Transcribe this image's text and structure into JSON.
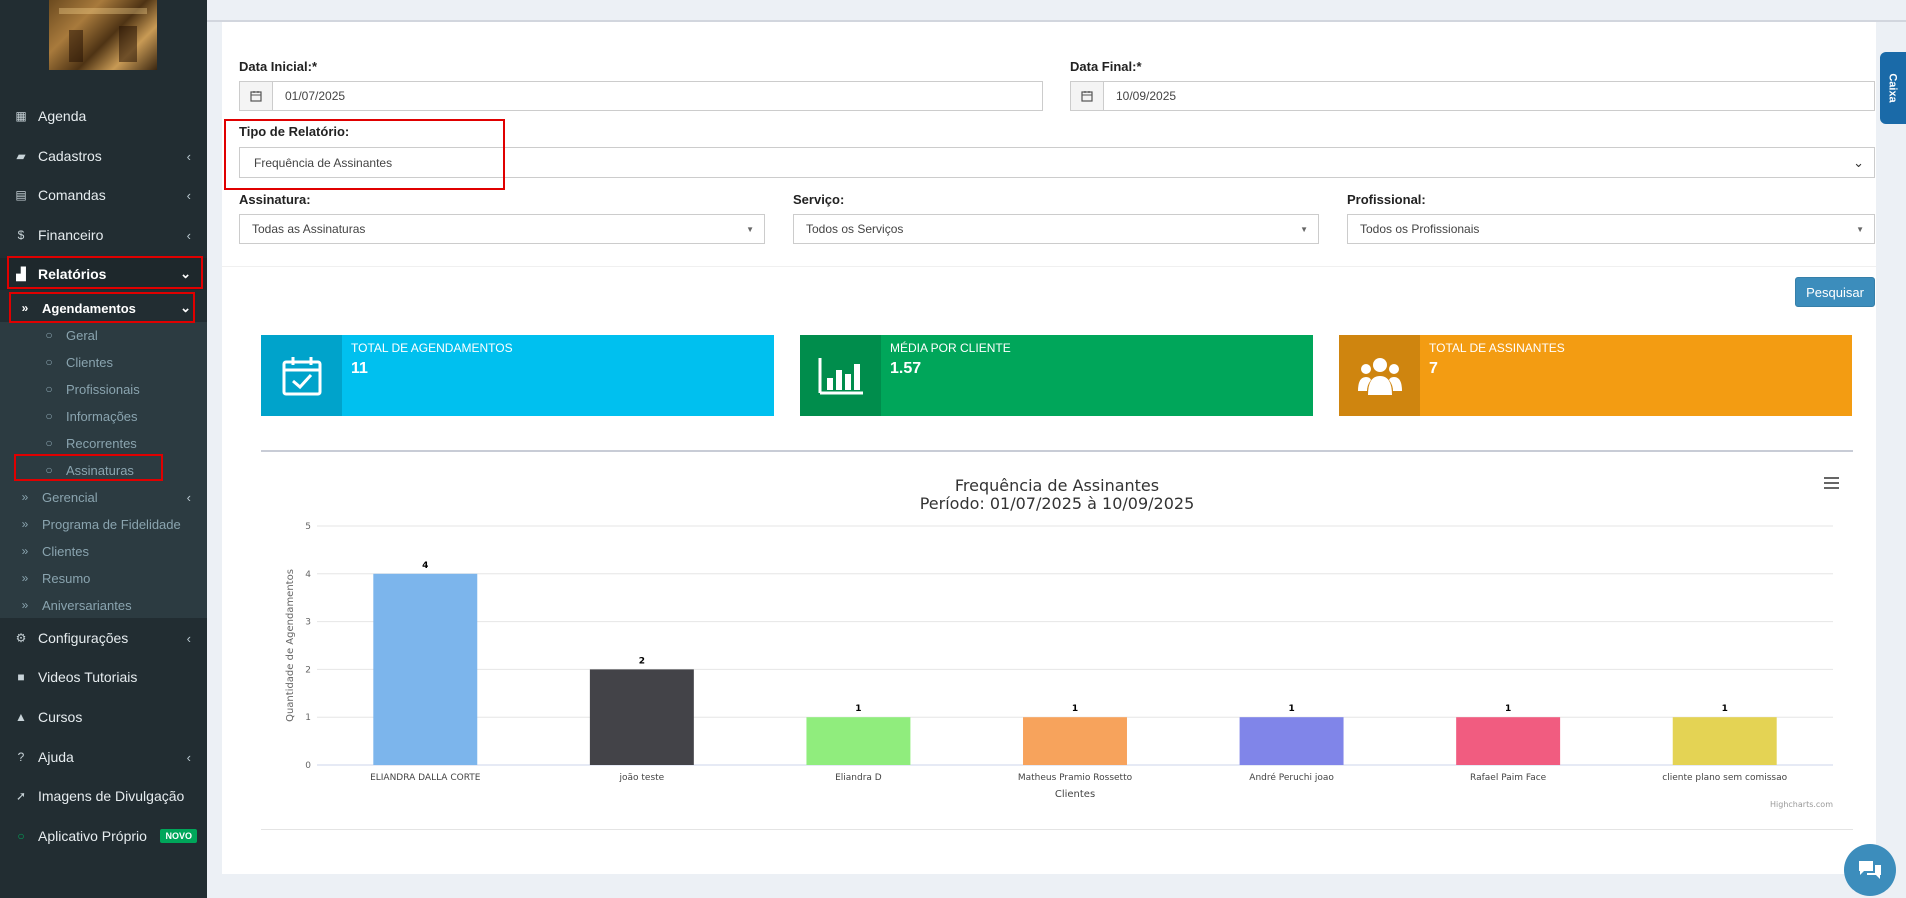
{
  "sidebar": {
    "items": [
      {
        "label": "Agenda",
        "icon": "calendar-icon"
      },
      {
        "label": "Cadastros",
        "icon": "book-icon"
      },
      {
        "label": "Comandas",
        "icon": "list-icon"
      },
      {
        "label": "Financeiro",
        "icon": "dollar-icon"
      },
      {
        "label": "Relatórios",
        "icon": "bar-chart-icon"
      },
      {
        "label": "Agendamentos",
        "icon": "double-chevron-icon"
      },
      {
        "label": "Geral"
      },
      {
        "label": "Clientes"
      },
      {
        "label": "Profissionais"
      },
      {
        "label": "Informações"
      },
      {
        "label": "Recorrentes"
      },
      {
        "label": "Assinaturas"
      },
      {
        "label": "Gerencial"
      },
      {
        "label": "Programa de Fidelidade"
      },
      {
        "label": "Clientes"
      },
      {
        "label": "Resumo"
      },
      {
        "label": "Aniversariantes"
      },
      {
        "label": "Configurações",
        "icon": "gear-icon"
      },
      {
        "label": "Videos Tutoriais",
        "icon": "video-icon"
      },
      {
        "label": "Cursos",
        "icon": "graduation-cap-icon"
      },
      {
        "label": "Ajuda",
        "icon": "question-icon"
      },
      {
        "label": "Imagens de Divulgação",
        "icon": "rocket-icon"
      },
      {
        "label": "Aplicativo Próprio",
        "icon": "circle-icon"
      }
    ],
    "novo_badge": "NOVO"
  },
  "form": {
    "data_inicial_label": "Data Inicial:*",
    "data_inicial_value": "01/07/2025",
    "data_final_label": "Data Final:*",
    "data_final_value": "10/09/2025",
    "tipo_label": "Tipo de Relatório:",
    "tipo_value": "Frequência de Assinantes",
    "assinatura_label": "Assinatura:",
    "assinatura_value": "Todas as Assinaturas",
    "servico_label": "Serviço:",
    "servico_value": "Todos os Serviços",
    "profissional_label": "Profissional:",
    "profissional_value": "Todos os Profissionais",
    "search_button": "Pesquisar"
  },
  "caixa_tab": "Caixa",
  "stats": [
    {
      "title": "TOTAL DE AGENDAMENTOS",
      "value": "11",
      "color": "#00c0ef",
      "icon_bg": "#00a3cb",
      "icon": "calendar-check-icon"
    },
    {
      "title": "MÉDIA POR CLIENTE",
      "value": "1.57",
      "color": "#00a65a",
      "icon_bg": "#008d4c",
      "icon": "bar-chart-icon"
    },
    {
      "title": "TOTAL DE ASSINANTES",
      "value": "7",
      "color": "#f39c12",
      "icon_bg": "#cf850f",
      "icon": "users-icon"
    }
  ],
  "chart_data": {
    "type": "bar",
    "title": "Frequência de Assinantes",
    "subtitle": "Período: 01/07/2025 à 10/09/2025",
    "xlabel": "Clientes",
    "ylabel": "Quantidade de Agendamentos",
    "ylim": [
      0,
      5
    ],
    "yticks": [
      "0",
      "1",
      "2",
      "3",
      "4",
      "5"
    ],
    "categories": [
      "ELIANDRA DALLA CORTE",
      "joão teste",
      "Eliandra D",
      "Matheus Pramio Rossetto",
      "André Peruchi joao",
      "Rafael Paim Face",
      "cliente plano sem comissao"
    ],
    "values": [
      4,
      2,
      1,
      1,
      1,
      1,
      1
    ],
    "colors": [
      "#7cb5ec",
      "#434348",
      "#90ed7d",
      "#f7a35c",
      "#8085e9",
      "#f15c80",
      "#e4d354"
    ],
    "credits": "Highcharts.com",
    "grid": true
  }
}
